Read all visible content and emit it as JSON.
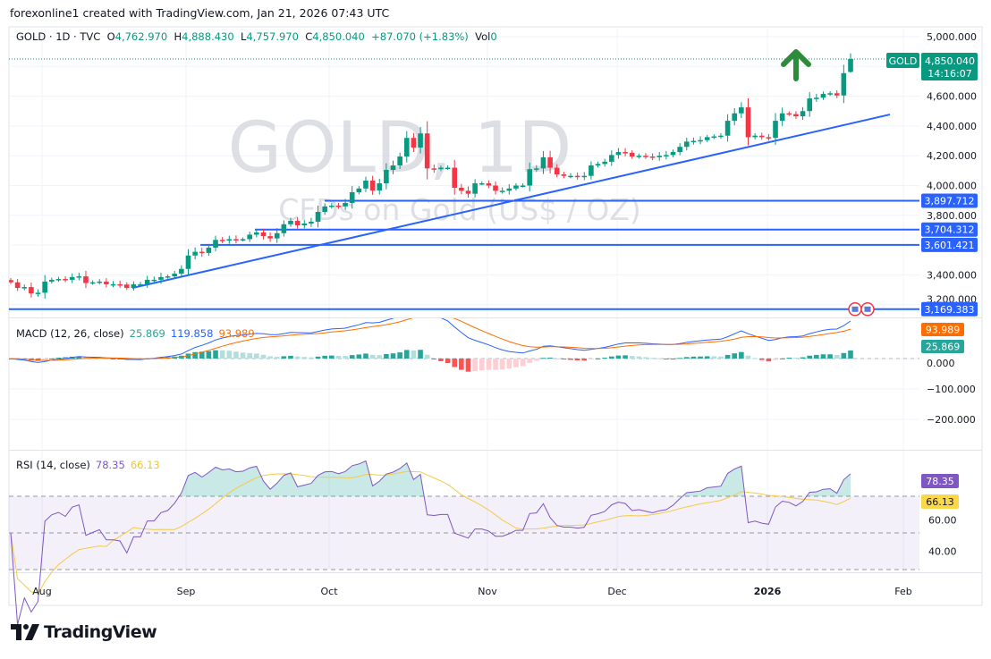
{
  "credit": "forexonline1 created with TradingView.com, Jan 21, 2026 07:43 UTC",
  "legend": {
    "symbol": "GOLD · 1D · TVC",
    "o_label": "O",
    "o": "4,762.970",
    "h_label": "H",
    "h": "4,888.430",
    "l_label": "L",
    "l": "4,757.970",
    "c_label": "C",
    "c": "4,850.040",
    "change": "+87.070 (+1.83%)",
    "vol_label": "Vol",
    "vol": "0"
  },
  "watermark": {
    "line1": "GOLD, 1D",
    "line2": "CFDs on Gold (US$ / OZ)"
  },
  "price_tag": {
    "symbol": "GOLD",
    "price": "4,850.040",
    "countdown": "14:16:07"
  },
  "macd_legend": {
    "title": "MACD (12, 26, close)",
    "hist": "25.869",
    "macd": "119.858",
    "signal": "93.989"
  },
  "rsi_legend": {
    "title": "RSI (14, close)",
    "rsi": "78.35",
    "ma": "66.13"
  },
  "brand": "TradingView",
  "colors": {
    "up": "#089981",
    "down": "#f23645",
    "line": "#2962ff",
    "signal": "#ff6d00",
    "rsi": "#7e57c2",
    "rsi_ma": "#f7c948",
    "arrow": "#2e8b3a"
  },
  "chart_data": [
    {
      "type": "candlestick",
      "title": "GOLD · 1D · TVC",
      "x_tick_labels": [
        "Aug",
        "Sep",
        "Oct",
        "Nov",
        "Dec",
        "2026",
        "Feb"
      ],
      "y_tick_labels": [
        "5,000.000",
        "4,600.000",
        "4,400.000",
        "4,200.000",
        "4,000.000",
        "3,800.000",
        "3,400.000",
        "3,200.000"
      ],
      "ylim": [
        3100,
        5060
      ],
      "grid": true,
      "closes": [
        3350,
        3312,
        3318,
        3275,
        3280,
        3355,
        3367,
        3372,
        3367,
        3385,
        3390,
        3345,
        3350,
        3355,
        3337,
        3337,
        3335,
        3312,
        3337,
        3337,
        3367,
        3367,
        3385,
        3390,
        3408,
        3440,
        3530,
        3555,
        3547,
        3583,
        3635,
        3630,
        3640,
        3635,
        3640,
        3670,
        3685,
        3660,
        3645,
        3680,
        3740,
        3763,
        3733,
        3745,
        3757,
        3823,
        3860,
        3865,
        3860,
        3883,
        3955,
        3980,
        4033,
        3967,
        4015,
        4105,
        4135,
        4195,
        4320,
        4255,
        4350,
        4115,
        4110,
        4120,
        4120,
        3985,
        3965,
        3945,
        4015,
        4015,
        4000,
        3965,
        3965,
        3980,
        4000,
        4000,
        4110,
        4115,
        4190,
        4120,
        4075,
        4065,
        4065,
        4060,
        4065,
        4135,
        4145,
        4160,
        4205,
        4225,
        4220,
        4195,
        4200,
        4195,
        4190,
        4200,
        4205,
        4225,
        4260,
        4295,
        4300,
        4305,
        4325,
        4330,
        4335,
        4435,
        4485,
        4525,
        4325,
        4335,
        4325,
        4320,
        4435,
        4485,
        4480,
        4465,
        4500,
        4585,
        4590,
        4615,
        4620,
        4605,
        4755,
        4850
      ],
      "last_bar": {
        "open": 4762.97,
        "high": 4888.43,
        "low": 4757.97,
        "close": 4850.04
      },
      "horizontal_levels": [
        {
          "price": 3897.712,
          "label": "3,897.712"
        },
        {
          "price": 3704.312,
          "label": "3,704.312"
        },
        {
          "price": 3601.421,
          "label": "3,601.421"
        },
        {
          "price": 3169.383,
          "label": "3,169.383"
        }
      ],
      "trendline": {
        "from_price": 3312,
        "to_price": 4477
      },
      "annotation": "up-arrow-icon"
    },
    {
      "type": "line",
      "title": "MACD (12, 26, close)",
      "y_tick_labels": [
        "0.000",
        "-100.000",
        "-200.000"
      ],
      "last_values": {
        "histogram": 25.869,
        "macd": 119.858,
        "signal": 93.989
      }
    },
    {
      "type": "line",
      "title": "RSI (14, close)",
      "y_tick_labels": [
        "60.00",
        "40.00"
      ],
      "bands": [
        30,
        50,
        70
      ],
      "last_values": {
        "rsi": 78.35,
        "ma": 66.13
      }
    }
  ]
}
